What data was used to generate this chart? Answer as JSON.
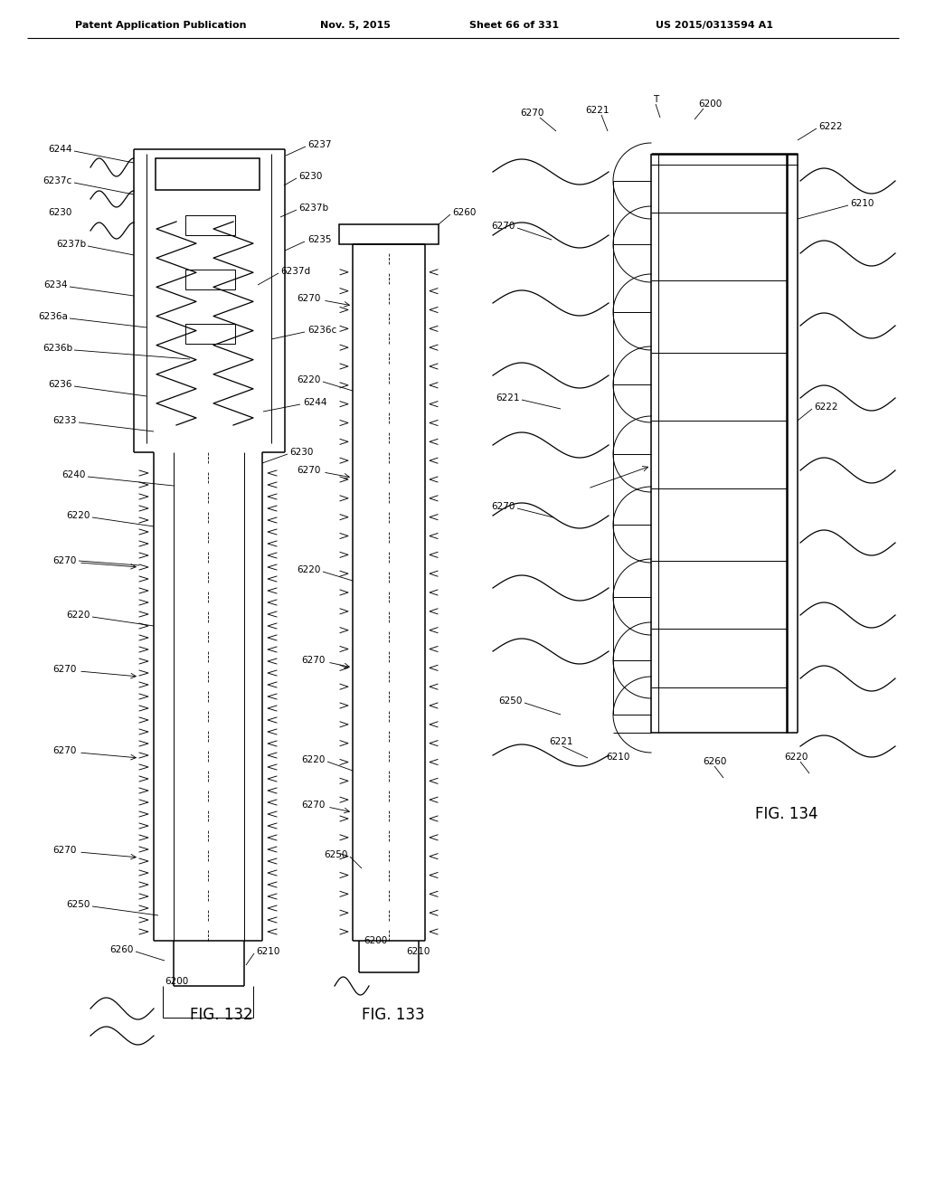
{
  "title_left": "Patent Application Publication",
  "title_mid": "Nov. 5, 2015",
  "title_sheet": "Sheet 66 of 331",
  "title_patent": "US 2015/0313594 A1",
  "bg_color": "#ffffff",
  "fig132_label": "FIG. 132",
  "fig133_label": "FIG. 133",
  "fig134_label": "FIG. 134"
}
